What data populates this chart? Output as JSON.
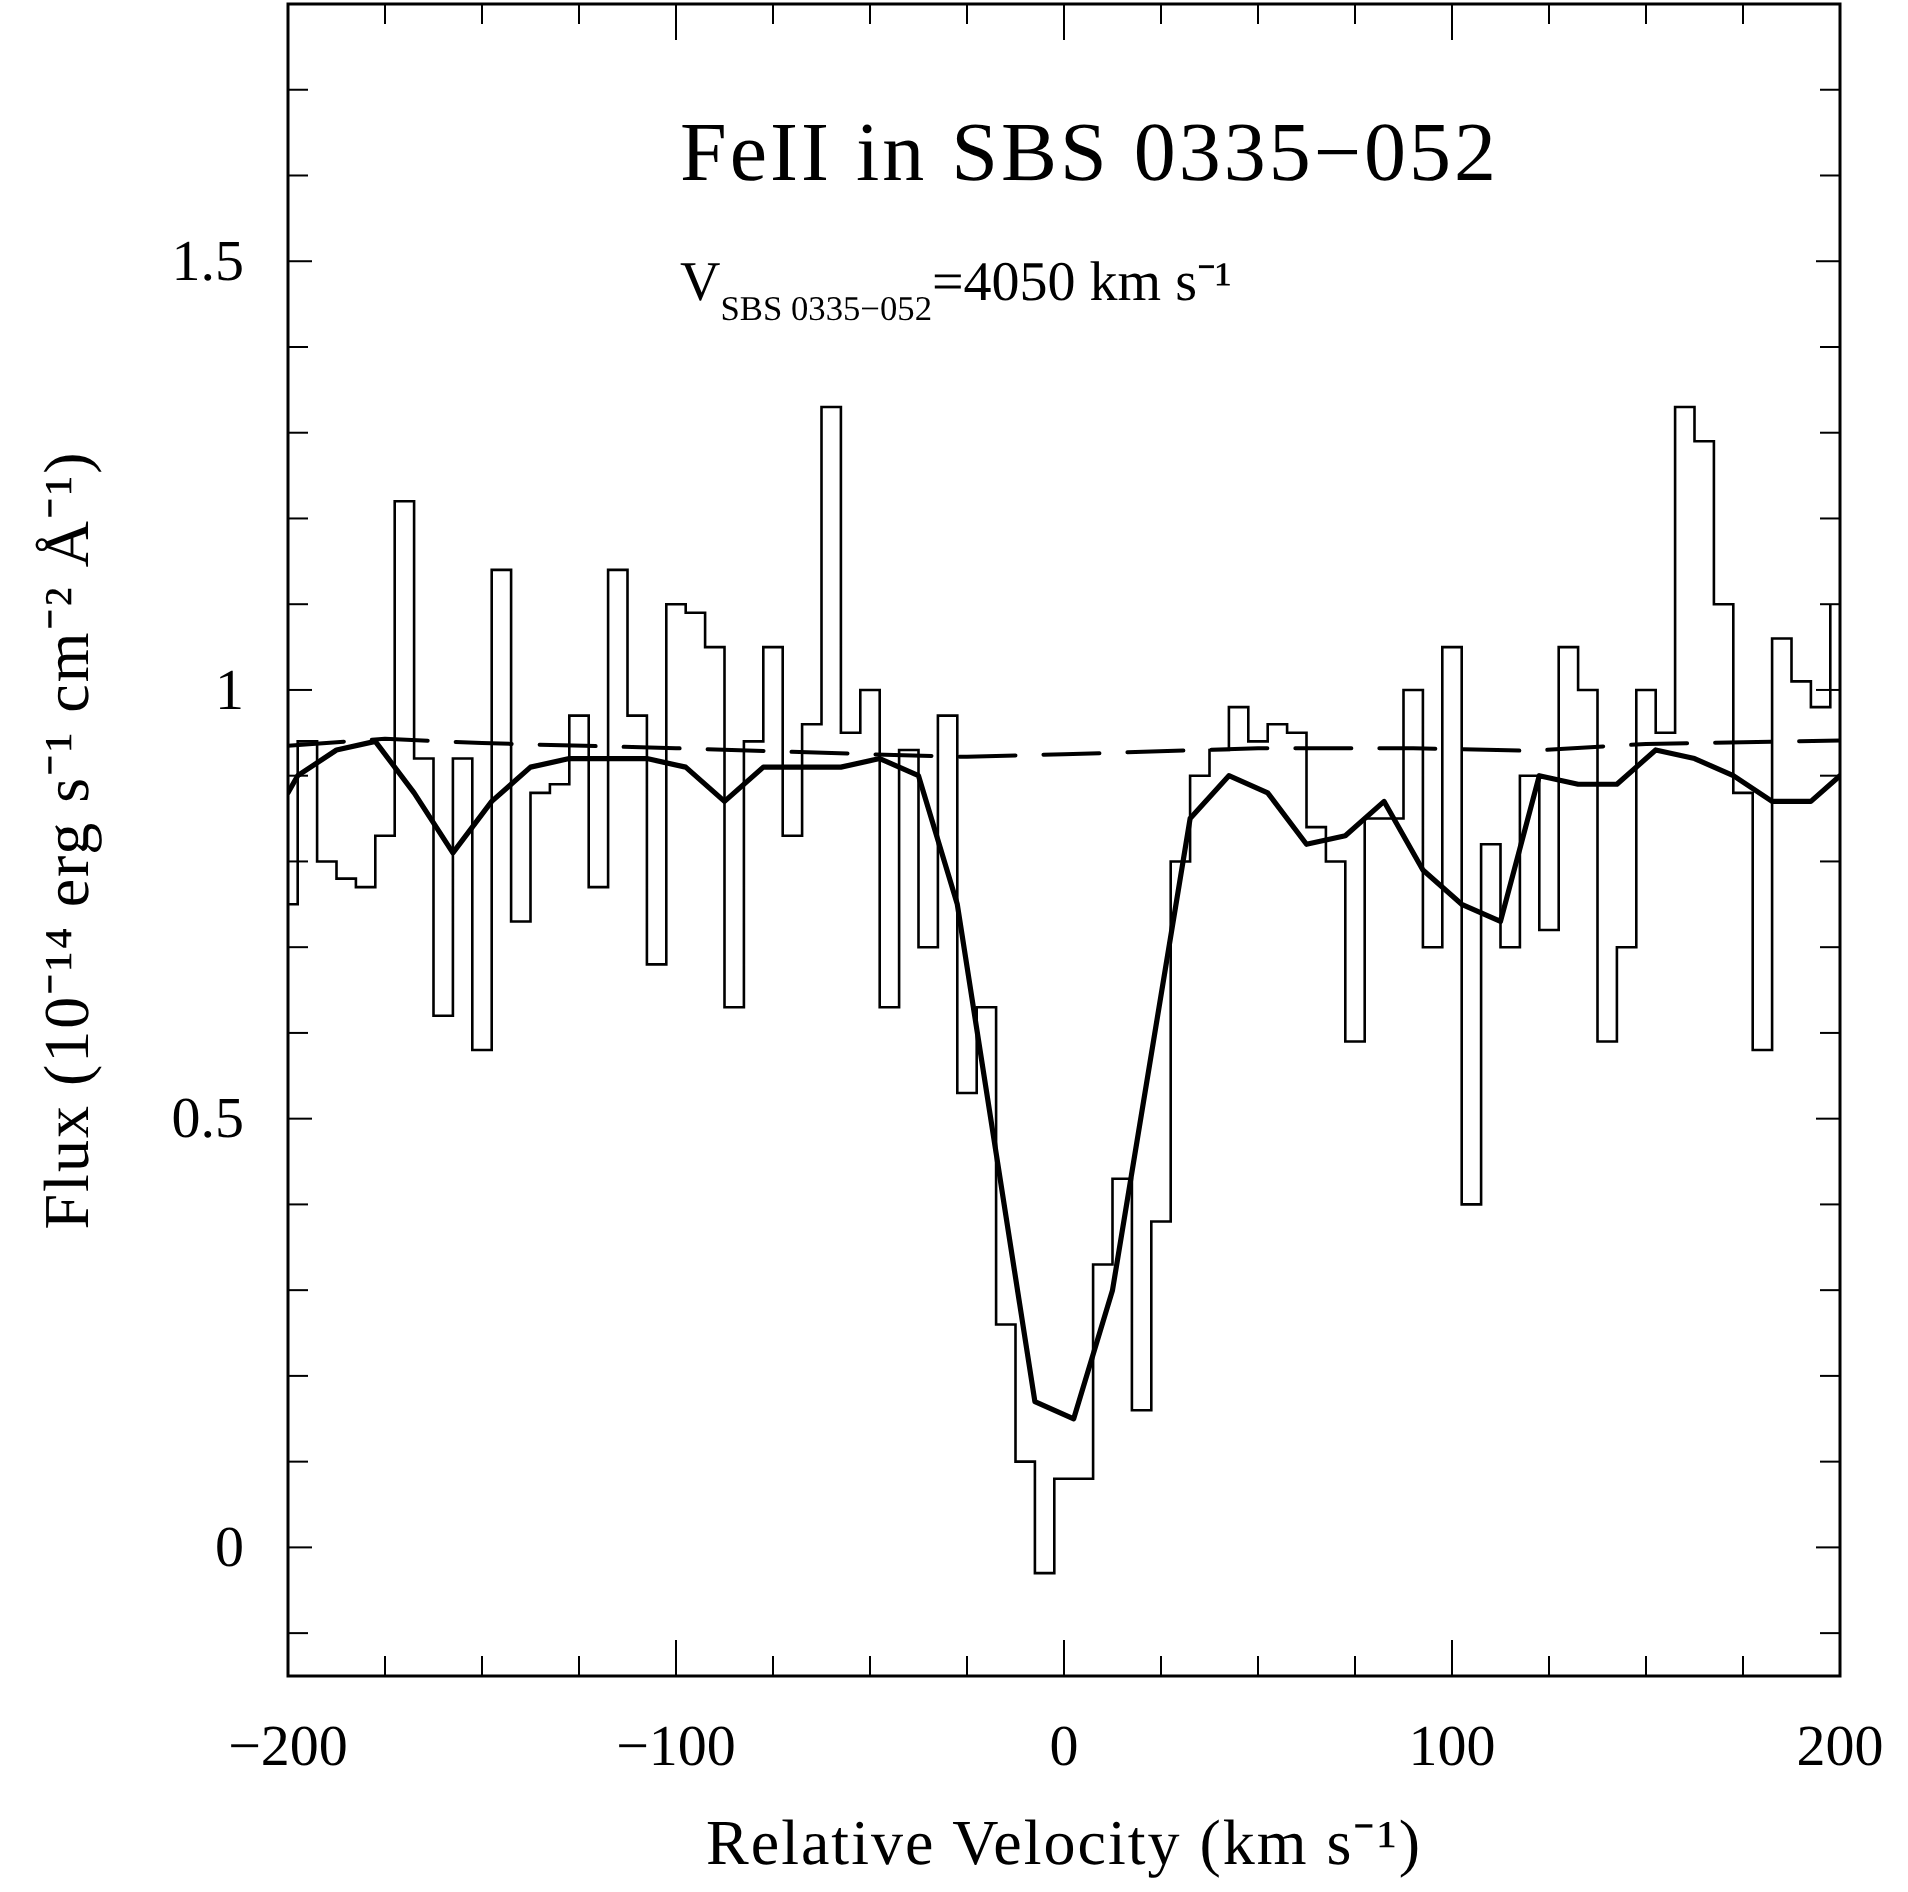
{
  "chart_data": {
    "type": "line",
    "title": "FeII in SBS 0335−052",
    "subtitle": "V$_{SBS 0335−052}$=4050 km s⁻¹",
    "xlabel": "Relative Velocity (km s⁻¹)",
    "ylabel": "Flux (10⁻¹⁴ erg s⁻¹ cm⁻² Å⁻¹)",
    "xlim": [
      -200,
      200
    ],
    "ylim": [
      -0.15,
      1.8
    ],
    "xticks": [
      {
        "value": -200,
        "label": "−200"
      },
      {
        "value": -175,
        "label": null
      },
      {
        "value": -150,
        "label": null
      },
      {
        "value": -125,
        "label": null
      },
      {
        "value": -100,
        "label": "−100"
      },
      {
        "value": -75,
        "label": null
      },
      {
        "value": -50,
        "label": null
      },
      {
        "value": -25,
        "label": null
      },
      0,
      {
        "value": 25,
        "label": null
      },
      {
        "value": 50,
        "label": null
      },
      {
        "value": 75,
        "label": null
      },
      100,
      {
        "value": 125,
        "label": null
      },
      {
        "value": 150,
        "label": null
      },
      {
        "value": 175,
        "label": null
      },
      200
    ],
    "yticks": [
      {
        "value": -0.1,
        "label": null
      },
      0,
      {
        "value": 0.1,
        "label": null
      },
      {
        "value": 0.2,
        "label": null
      },
      {
        "value": 0.3,
        "label": null
      },
      {
        "value": 0.4,
        "label": null
      },
      0.5,
      {
        "value": 0.6,
        "label": null
      },
      {
        "value": 0.7,
        "label": null
      },
      {
        "value": 0.8,
        "label": null
      },
      {
        "value": 0.9,
        "label": null
      },
      1,
      {
        "value": 1.1,
        "label": null
      },
      {
        "value": 1.2,
        "label": null
      },
      {
        "value": 1.3,
        "label": null
      },
      {
        "value": 1.4,
        "label": null
      },
      1.5,
      {
        "value": 1.6,
        "label": null
      },
      {
        "value": 1.7,
        "label": null
      }
    ],
    "series": [
      {
        "type": "step",
        "color": "#000000",
        "x": [
          -200,
          -197.5,
          -192.5,
          -187.5,
          -182.5,
          -177.5,
          -172.5,
          -167.5,
          -162.5,
          -157.5,
          -152.5,
          -147.5,
          -142.5,
          -137.5,
          -132.5,
          -127.5,
          -122.5,
          -117.5,
          -112.5,
          -107.5,
          -102.5,
          -97.5,
          -92.5,
          -87.5,
          -82.5,
          -77.5,
          -72.5,
          -67.5,
          -62.5,
          -57.5,
          -52.5,
          -47.5,
          -42.5,
          -37.5,
          -32.5,
          -27.5,
          -22.5,
          -17.5,
          -12.5,
          -7.5,
          -2.5,
          2.5,
          7.5,
          12.5,
          17.5,
          22.5,
          27.5,
          32.5,
          37.5,
          42.5,
          47.5,
          52.5,
          57.5,
          62.5,
          67.5,
          72.5,
          77.5,
          82.5,
          87.5,
          92.5,
          97.5,
          102.5,
          107.5,
          112.5,
          117.5,
          122.5,
          127.5,
          132.5,
          137.5,
          142.5,
          147.5,
          152.5,
          157.5,
          162.5,
          167.5,
          172.5,
          177.5,
          182.5,
          187.5,
          192.5,
          197.5
        ],
        "values": [
          0.75,
          0.94,
          0.8,
          0.78,
          0.77,
          0.83,
          1.22,
          0.92,
          0.62,
          0.92,
          0.58,
          1.14,
          0.73,
          0.88,
          0.89,
          0.97,
          0.77,
          1.14,
          0.97,
          0.68,
          1.1,
          1.09,
          1.05,
          0.63,
          0.94,
          1.05,
          0.83,
          0.96,
          1.33,
          0.95,
          1.0,
          0.63,
          0.93,
          0.7,
          0.97,
          0.53,
          0.63,
          0.26,
          0.1,
          -0.03,
          0.08,
          0.08,
          0.33,
          0.43,
          0.16,
          0.38,
          0.8,
          0.9,
          0.93,
          0.98,
          0.94,
          0.96,
          0.95,
          0.84,
          0.8,
          0.59,
          0.85,
          0.85,
          1.0,
          0.7,
          1.05,
          0.4,
          0.82,
          0.7,
          0.9,
          0.72,
          1.05,
          1.0,
          0.59,
          0.7,
          1.0,
          0.95,
          1.33,
          1.29,
          1.1,
          0.88,
          0.58,
          1.06,
          1.01,
          0.98,
          1.1
        ]
      },
      {
        "color": "#000000",
        "line_style": "solid",
        "x": [
          -200,
          -197.5,
          -187.5,
          -177.5,
          -167.5,
          -157.5,
          -147.5,
          -137.5,
          -127.5,
          -117.5,
          -107.5,
          -97.5,
          -87.5,
          -77.5,
          -67.5,
          -57.5,
          -47.5,
          -37.5,
          -27.5,
          -17.5,
          -7.5,
          2.5,
          12.5,
          32.5,
          42.5,
          52.5,
          62.5,
          72.5,
          82.5,
          92.5,
          102.5,
          112.5,
          122.5,
          132.5,
          142.5,
          152.5,
          162.5,
          172.5,
          182.5,
          192.5,
          200
        ],
        "values": [
          0.88,
          0.9,
          0.93,
          0.94,
          0.88,
          0.81,
          0.87,
          0.91,
          0.92,
          0.92,
          0.92,
          0.91,
          0.87,
          0.91,
          0.91,
          0.91,
          0.92,
          0.9,
          0.75,
          0.46,
          0.17,
          0.15,
          0.3,
          0.85,
          0.9,
          0.88,
          0.82,
          0.83,
          0.87,
          0.79,
          0.75,
          0.73,
          0.9,
          0.89,
          0.89,
          0.93,
          0.92,
          0.9,
          0.87,
          0.87,
          0.9
        ]
      },
      {
        "color": "#000000",
        "line_style": "dashed",
        "x": [
          -200,
          -175,
          -150,
          -100,
          -50,
          -25,
          0,
          50,
          90,
          120,
          150,
          200
        ],
        "values": [
          0.935,
          0.943,
          0.938,
          0.932,
          0.925,
          0.922,
          0.925,
          0.932,
          0.932,
          0.929,
          0.937,
          0.941
        ]
      }
    ]
  }
}
